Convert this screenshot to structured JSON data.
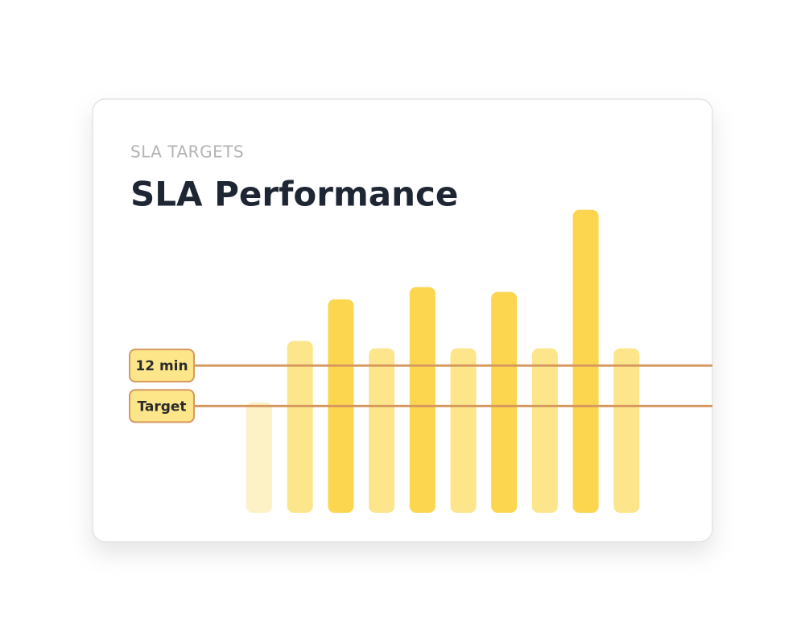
{
  "chart_data": {
    "type": "bar",
    "subtitle": "SLA TARGETS",
    "title": "SLA Performance",
    "values": [
      9.0,
      14.0,
      17.4,
      13.4,
      18.4,
      13.4,
      18.0,
      13.4,
      24.7,
      13.4
    ],
    "colors": [
      "#fdf1c6",
      "#fde58c",
      "#fcd64f",
      "#fde58c",
      "#fcd64f",
      "#fde58c",
      "#fcd64f",
      "#fde58c",
      "#fcd64f",
      "#fde58c"
    ],
    "ylim": [
      0,
      25
    ],
    "reference_lines": [
      {
        "label": "12 min",
        "value": 12
      },
      {
        "label": "Target",
        "value": 8.7
      }
    ],
    "reference_color": "#d6985e"
  }
}
